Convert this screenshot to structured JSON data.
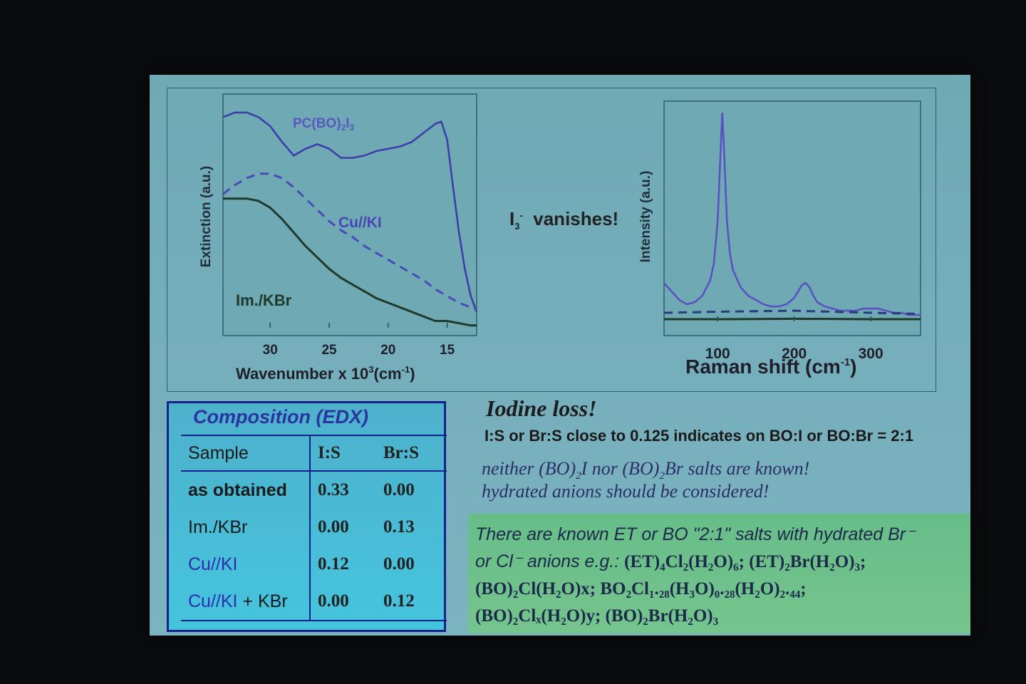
{
  "chart_data": [
    {
      "type": "line",
      "xlabel": "Wavenumber x 10³(cm⁻¹)",
      "ylabel": "Extinction (a.u.)",
      "xlim": [
        34,
        12.5
      ],
      "ylim": [
        0,
        1
      ],
      "x_ticks": [
        "30",
        "25",
        "20",
        "15"
      ],
      "series": [
        {
          "name": "PC(BO)₂I₃",
          "color": "#3d3ea8",
          "style": "solid",
          "x": [
            34,
            33,
            32,
            31,
            30,
            29,
            28,
            27,
            26,
            25,
            24,
            23,
            22,
            21,
            20,
            19,
            18,
            17,
            16,
            15.5,
            15,
            14.5,
            14,
            13.5,
            13,
            12.5
          ],
          "y": [
            0.93,
            0.95,
            0.95,
            0.93,
            0.89,
            0.82,
            0.76,
            0.79,
            0.81,
            0.79,
            0.75,
            0.75,
            0.76,
            0.78,
            0.79,
            0.8,
            0.82,
            0.86,
            0.9,
            0.91,
            0.83,
            0.62,
            0.42,
            0.26,
            0.14,
            0.07
          ]
        },
        {
          "name": "Cu//KI",
          "color": "#4a4ab8",
          "style": "dashed",
          "x": [
            34,
            33,
            32,
            31,
            30,
            29,
            28,
            27,
            26,
            25,
            24,
            23,
            22,
            21,
            20,
            19,
            18,
            17,
            16,
            15,
            14,
            13,
            12.5
          ],
          "y": [
            0.59,
            0.63,
            0.66,
            0.68,
            0.68,
            0.66,
            0.62,
            0.57,
            0.52,
            0.47,
            0.43,
            0.4,
            0.36,
            0.33,
            0.3,
            0.27,
            0.24,
            0.21,
            0.17,
            0.14,
            0.11,
            0.09,
            0.08
          ]
        },
        {
          "name": "Im./KBr",
          "color": "#1f3a2c",
          "style": "solid",
          "x": [
            34,
            33,
            32,
            31,
            30,
            29,
            28,
            27,
            26,
            25,
            24,
            23,
            22,
            21,
            20,
            19,
            18,
            17,
            16,
            15,
            14,
            13,
            12.5
          ],
          "y": [
            0.57,
            0.57,
            0.57,
            0.56,
            0.53,
            0.48,
            0.42,
            0.36,
            0.31,
            0.26,
            0.22,
            0.19,
            0.16,
            0.13,
            0.11,
            0.09,
            0.07,
            0.05,
            0.03,
            0.03,
            0.02,
            0.01,
            0.01
          ]
        }
      ]
    },
    {
      "type": "line",
      "xlabel": "Raman shift (cm⁻¹)",
      "ylabel": "Intensity (a.u.)",
      "xlim": [
        30,
        365
      ],
      "ylim": [
        0,
        1
      ],
      "x_ticks": [
        "100",
        "200",
        "300"
      ],
      "series": [
        {
          "color": "#5a52c0",
          "style": "solid",
          "x": [
            30,
            40,
            50,
            60,
            70,
            80,
            90,
            95,
            100,
            103,
            106,
            109,
            112,
            116,
            120,
            130,
            140,
            150,
            160,
            170,
            180,
            190,
            200,
            205,
            210,
            215,
            220,
            225,
            230,
            240,
            250,
            260,
            270,
            280,
            290,
            300,
            310,
            320,
            330,
            340,
            350,
            360,
            365
          ],
          "y": [
            0.18,
            0.14,
            0.1,
            0.08,
            0.09,
            0.12,
            0.19,
            0.27,
            0.47,
            0.72,
            0.98,
            0.75,
            0.48,
            0.32,
            0.24,
            0.16,
            0.12,
            0.1,
            0.08,
            0.07,
            0.07,
            0.08,
            0.11,
            0.14,
            0.17,
            0.18,
            0.16,
            0.12,
            0.09,
            0.07,
            0.06,
            0.05,
            0.05,
            0.05,
            0.06,
            0.06,
            0.06,
            0.05,
            0.04,
            0.04,
            0.03,
            0.03,
            0.03
          ]
        },
        {
          "color": "#2a3c7a",
          "style": "dashed",
          "x": [
            30,
            100,
            200,
            300,
            365
          ],
          "y": [
            0.04,
            0.045,
            0.05,
            0.04,
            0.035
          ]
        },
        {
          "color": "#1f3a2c",
          "style": "solid",
          "x": [
            30,
            100,
            200,
            300,
            365
          ],
          "y": [
            0.01,
            0.01,
            0.012,
            0.01,
            0.01
          ]
        }
      ]
    }
  ],
  "labels": {
    "pcbo": "PC(BO)",
    "pcbo_sub": "2",
    "pcbo_end": "I",
    "pcbo_sub2": "3",
    "cuki": "Cu//KI",
    "imkbr": "Im./KBr",
    "left_xlabel_main": "Wavenumber x 10",
    "left_xlabel_sup": "3",
    "left_xlabel_unit": "(cm",
    "left_xlabel_sup2": "-1",
    "left_xlabel_close": ")",
    "left_ylabel": "Extinction (a.u.)",
    "right_xlabel_main": "Raman shift (cm",
    "right_xlabel_sup": "-1",
    "right_xlabel_close": ")",
    "right_ylabel": "Intensity (a.u.)"
  },
  "note": {
    "main": "I",
    "sub": "3",
    "sup": "-",
    "rest": "vanishes!"
  },
  "table": {
    "title": "Composition (EDX)",
    "headers": [
      "Sample",
      "I:S",
      "Br:S"
    ],
    "rows": [
      {
        "sample": "as obtained",
        "is": "0.33",
        "brs": "0.00"
      },
      {
        "sample": "Im./KBr",
        "is": "0.00",
        "brs": "0.13"
      },
      {
        "sample": "Cu//KI",
        "is": "0.12",
        "brs": "0.00"
      },
      {
        "sample_a": "Cu//KI",
        "sample_b": "+ KBr",
        "is": "0.00",
        "brs": "0.12"
      }
    ]
  },
  "text": {
    "heading": "Iodine loss!",
    "ratio": "I:S or Br:S close to 0.125  indicates on BO:I or BO:Br = 2:1",
    "note1_a": "neither (BO)",
    "note1_sub1": "2",
    "note1_b": "I nor (BO)",
    "note1_sub2": "2",
    "note1_c": "Br salts are known!",
    "note2": "hydrated anions should be considered!",
    "green1": "There are known ET or BO \"2:1\"  salts with hydrated Br⁻",
    "green2_a": "or Cl⁻ anions e.g.: ",
    "green2_b": "(ET)₄Cl₂(H₂O)₆; (ET)₂Br(H₂O)₃;",
    "green3": "(BO)₂Cl(H₂O)x; BO₂Cl₁.₂₈(H₃O)₀.₂₈(H₂O)₂.₄₄;",
    "green4": "(BO)₂Clₓ(H₂O)y; (BO)₂Br(H₂O)₃"
  }
}
